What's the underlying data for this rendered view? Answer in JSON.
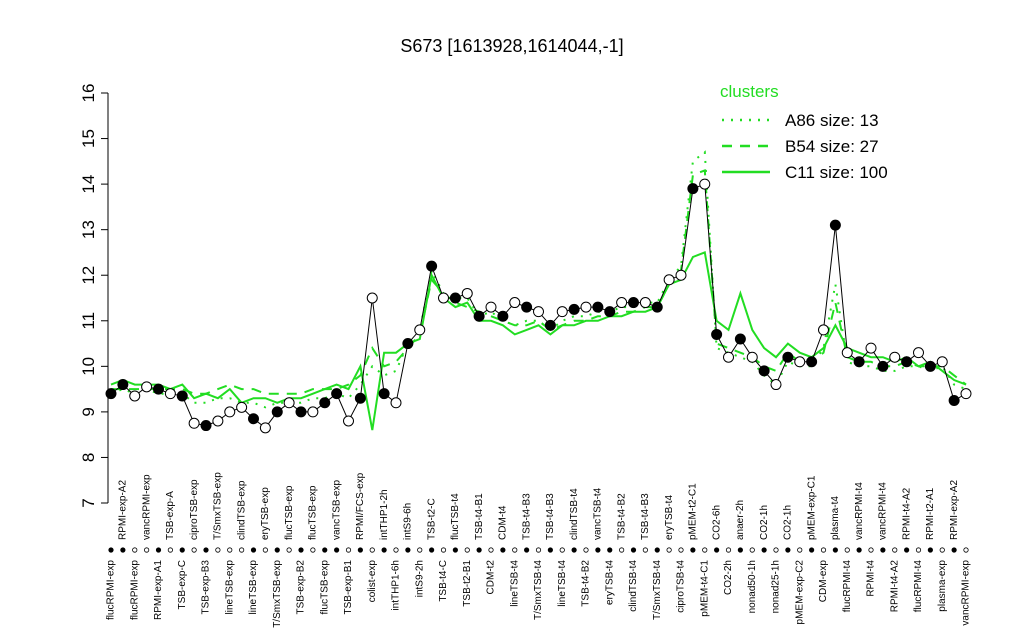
{
  "chart_data": {
    "type": "line",
    "title": "S673 [1613928,1614044,-1]",
    "categories": [
      "flucRPMI-exp",
      "RPMI-exp-A2",
      "flucRPMI-exp",
      "vancRPMI-exp",
      "RPMI-exp-A1",
      "TSB-exp-A",
      "TSB-exp-C",
      "ciproTSB-exp",
      "TSB-exp-B3",
      "T/SmxTSB-exp",
      "lineTSB-exp",
      "clindTSB-exp",
      "lineTSB-exp",
      "eryTSB-exp",
      "T/SmxTSB-exp",
      "flucTSB-exp",
      "TSB-exp-B2",
      "flucTSB-exp",
      "flucTSB-exp",
      "vancTSB-exp",
      "TSB-exp-B1",
      "RPMI/FCS-exp",
      "colist-exp",
      "intTHP1-2h",
      "intTHP1-6h",
      "intS9-6h",
      "intS9-2h",
      "TSB-t2-C",
      "TSB-t4-C",
      "flucTSB-t4",
      "TSB-t2-B1",
      "TSB-t4-B1",
      "CDM-t2",
      "CDM-t4",
      "lineTSB-t4",
      "TSB-t4-B3",
      "T/SmxTSB-t4",
      "TSB-t4-B3",
      "lineTSB-t4",
      "clindTSB-t4",
      "TSB-t4-B2",
      "vancTSB-t4",
      "eryTSB-t4",
      "TSB-t4-B2",
      "clindTSB-t4",
      "TSB-t4-B3",
      "T/SmxTSB-t4",
      "eryTSB-t4",
      "ciproTSB-t4",
      "pMEM-t2-C1",
      "pMEM-t4-C1",
      "CO2-6h",
      "CO2-2h",
      "anaer-2h",
      "nonad50-1h",
      "CO2-1h",
      "nonad25-1h",
      "CO2-1h",
      "pMEM-exp-C2",
      "pMEM-exp-C1",
      "CDM-exp",
      "plasma-t4",
      "flucRPMI-t4",
      "vancRPMI-t4",
      "RPMI-t4",
      "vancRPMI-t4",
      "RPMI-t4-A2",
      "RPMI-t4-A2",
      "flucRPMI-t4",
      "RPMI-t2-A1",
      "plasma-exp",
      "RPMI-exp-A2",
      "vancRPMI-exp"
    ],
    "values": [
      9.4,
      9.6,
      9.35,
      9.55,
      9.5,
      9.4,
      9.35,
      8.75,
      8.7,
      8.8,
      9.0,
      9.1,
      8.85,
      8.65,
      9.0,
      9.2,
      9.0,
      9.0,
      9.2,
      9.4,
      8.8,
      9.3,
      11.5,
      9.4,
      9.2,
      10.5,
      10.8,
      12.2,
      11.5,
      11.5,
      11.6,
      11.1,
      11.3,
      11.1,
      11.4,
      11.3,
      11.2,
      10.9,
      11.2,
      11.25,
      11.3,
      11.3,
      11.2,
      11.4,
      11.4,
      11.4,
      11.3,
      11.9,
      12.0,
      13.9,
      14.0,
      10.7,
      10.2,
      10.6,
      10.2,
      9.9,
      9.6,
      10.2,
      10.1,
      10.1,
      10.8,
      13.1,
      10.3,
      10.1,
      10.4,
      10.0,
      10.2,
      10.1,
      10.3,
      10.0,
      10.1,
      9.25,
      9.4
    ],
    "marker_filled": [
      true,
      true,
      false,
      false,
      true,
      false,
      true,
      false,
      true,
      false,
      false,
      false,
      true,
      false,
      true,
      false,
      true,
      false,
      true,
      true,
      false,
      true,
      false,
      true,
      false,
      true,
      false,
      true,
      false,
      true,
      false,
      true,
      false,
      true,
      false,
      true,
      false,
      true,
      false,
      true,
      false,
      true,
      true,
      false,
      true,
      false,
      true,
      false,
      false,
      true,
      false,
      true,
      false,
      true,
      false,
      true,
      false,
      true,
      false,
      true,
      false,
      true,
      false,
      true,
      false,
      true,
      false,
      true,
      false,
      true,
      false,
      true,
      false
    ],
    "color": "#000000",
    "legend_title": "clusters",
    "series": [
      {
        "name": "A86 size: 13",
        "color": "#22dd22",
        "dash": "dotted",
        "values": [
          9.4,
          9.5,
          9.4,
          9.5,
          9.4,
          9.4,
          9.4,
          9.2,
          9.2,
          9.3,
          9.3,
          9.2,
          9.2,
          9.1,
          9.2,
          9.2,
          9.2,
          9.3,
          9.3,
          9.4,
          9.3,
          9.6,
          10.0,
          9.8,
          9.9,
          10.5,
          10.8,
          12.1,
          11.6,
          11.5,
          11.5,
          11.1,
          11.2,
          11.0,
          10.9,
          11.0,
          11.0,
          10.8,
          11.0,
          11.1,
          11.1,
          11.2,
          11.2,
          11.3,
          11.3,
          11.4,
          11.4,
          11.9,
          12.2,
          14.5,
          14.7,
          10.4,
          10.3,
          10.2,
          10.1,
          9.8,
          9.6,
          10.1,
          10.0,
          10.0,
          10.4,
          11.8,
          10.1,
          10.0,
          10.0,
          9.9,
          9.9,
          10.0,
          10.0,
          9.9,
          10.0,
          9.6,
          9.5
        ]
      },
      {
        "name": "B54 size: 27",
        "color": "#22dd22",
        "dash": "dashed",
        "values": [
          9.5,
          9.5,
          9.5,
          9.5,
          9.5,
          9.5,
          9.5,
          9.4,
          9.4,
          9.5,
          9.6,
          9.5,
          9.5,
          9.4,
          9.4,
          9.4,
          9.4,
          9.5,
          9.5,
          9.5,
          9.6,
          9.8,
          10.4,
          10.0,
          10.1,
          10.4,
          10.7,
          11.9,
          11.6,
          11.4,
          11.3,
          11.2,
          11.1,
          11.0,
          10.9,
          10.9,
          11.0,
          10.8,
          10.9,
          11.0,
          11.0,
          11.1,
          11.1,
          11.2,
          11.2,
          11.3,
          11.3,
          11.8,
          12.1,
          14.2,
          14.3,
          10.5,
          10.4,
          10.3,
          10.2,
          10.0,
          9.9,
          10.3,
          10.1,
          10.1,
          10.3,
          11.4,
          10.2,
          10.1,
          10.1,
          10.0,
          10.0,
          10.1,
          10.0,
          10.0,
          10.0,
          9.8,
          9.6
        ]
      },
      {
        "name": "C11 size: 100",
        "color": "#22dd22",
        "dash": "solid",
        "values": [
          9.6,
          9.7,
          9.6,
          9.6,
          9.6,
          9.5,
          9.6,
          9.3,
          9.4,
          9.3,
          9.5,
          9.2,
          9.3,
          9.3,
          9.2,
          9.3,
          9.3,
          9.4,
          9.5,
          9.6,
          9.5,
          10.0,
          8.6,
          10.3,
          10.3,
          10.5,
          10.6,
          12.0,
          11.5,
          11.3,
          11.4,
          11.0,
          11.0,
          10.9,
          10.7,
          10.8,
          10.9,
          10.7,
          10.9,
          10.9,
          11.0,
          11.0,
          11.1,
          11.1,
          11.2,
          11.2,
          11.3,
          11.8,
          11.9,
          12.4,
          12.5,
          11.0,
          10.8,
          11.6,
          10.8,
          10.4,
          10.2,
          10.5,
          10.3,
          10.2,
          10.4,
          10.9,
          10.4,
          10.3,
          10.2,
          10.2,
          10.1,
          10.2,
          10.0,
          10.1,
          9.9,
          9.7,
          9.6
        ]
      }
    ],
    "ylim": [
      7,
      16
    ],
    "yticks": [
      7,
      8,
      9,
      10,
      11,
      12,
      13,
      14,
      15,
      16
    ]
  }
}
